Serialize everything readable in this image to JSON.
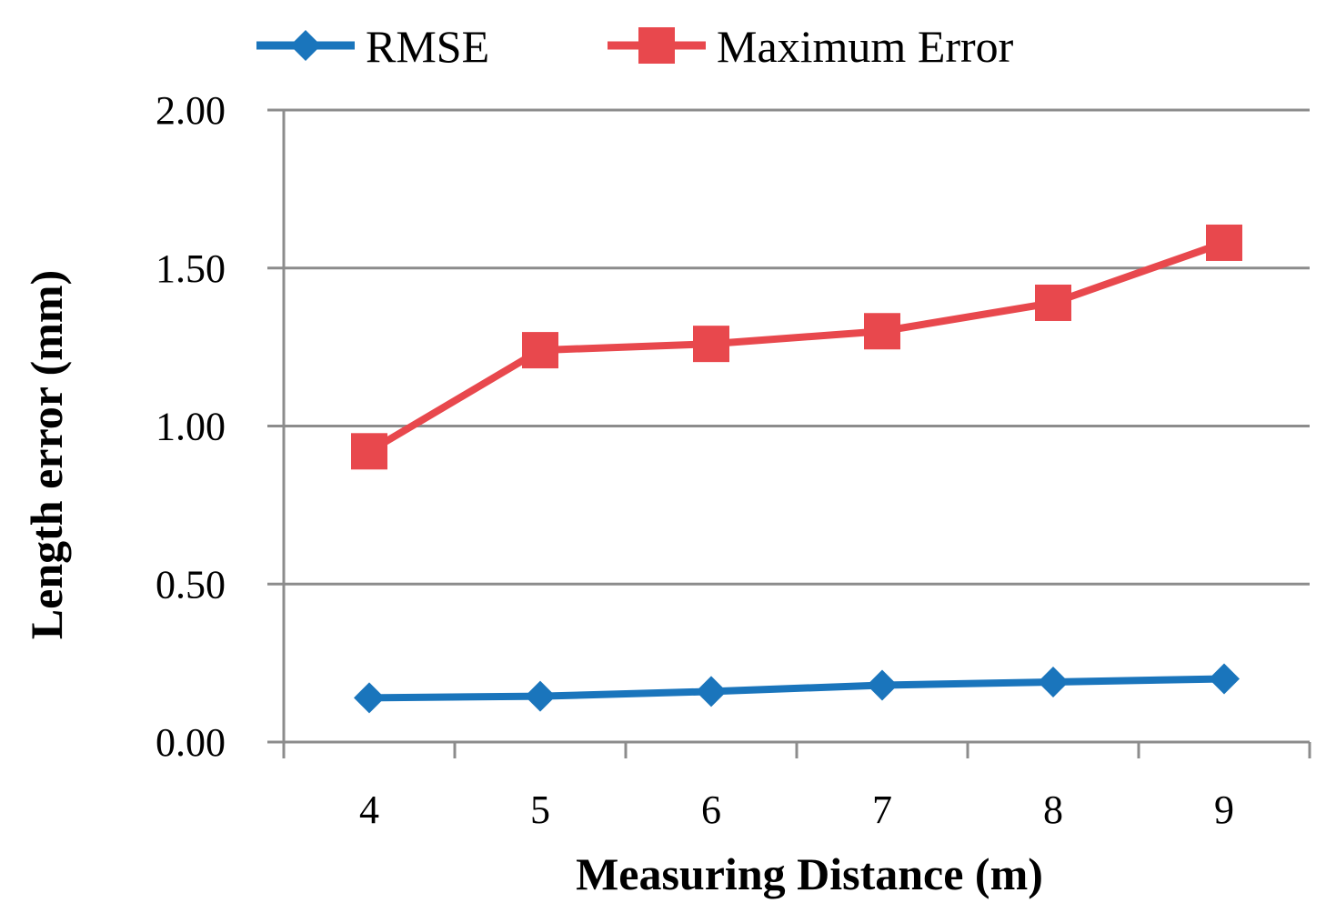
{
  "chart_data": {
    "type": "line",
    "title": "",
    "xlabel": "Measuring Distance (m)",
    "ylabel": "Length error (mm)",
    "categories": [
      "4",
      "5",
      "6",
      "7",
      "8",
      "9"
    ],
    "y_ticks": [
      "0.00",
      "0.50",
      "1.00",
      "1.50",
      "2.00"
    ],
    "ylim": [
      0,
      2
    ],
    "grid": true,
    "legend_position": "top",
    "series": [
      {
        "name": "RMSE",
        "marker": "diamond",
        "color": "#1a75bc",
        "values": [
          0.14,
          0.145,
          0.16,
          0.18,
          0.19,
          0.2
        ]
      },
      {
        "name": "Maximum Error",
        "marker": "square",
        "color": "#e8484d",
        "values": [
          0.92,
          1.24,
          1.26,
          1.3,
          1.39,
          1.58
        ]
      }
    ]
  }
}
